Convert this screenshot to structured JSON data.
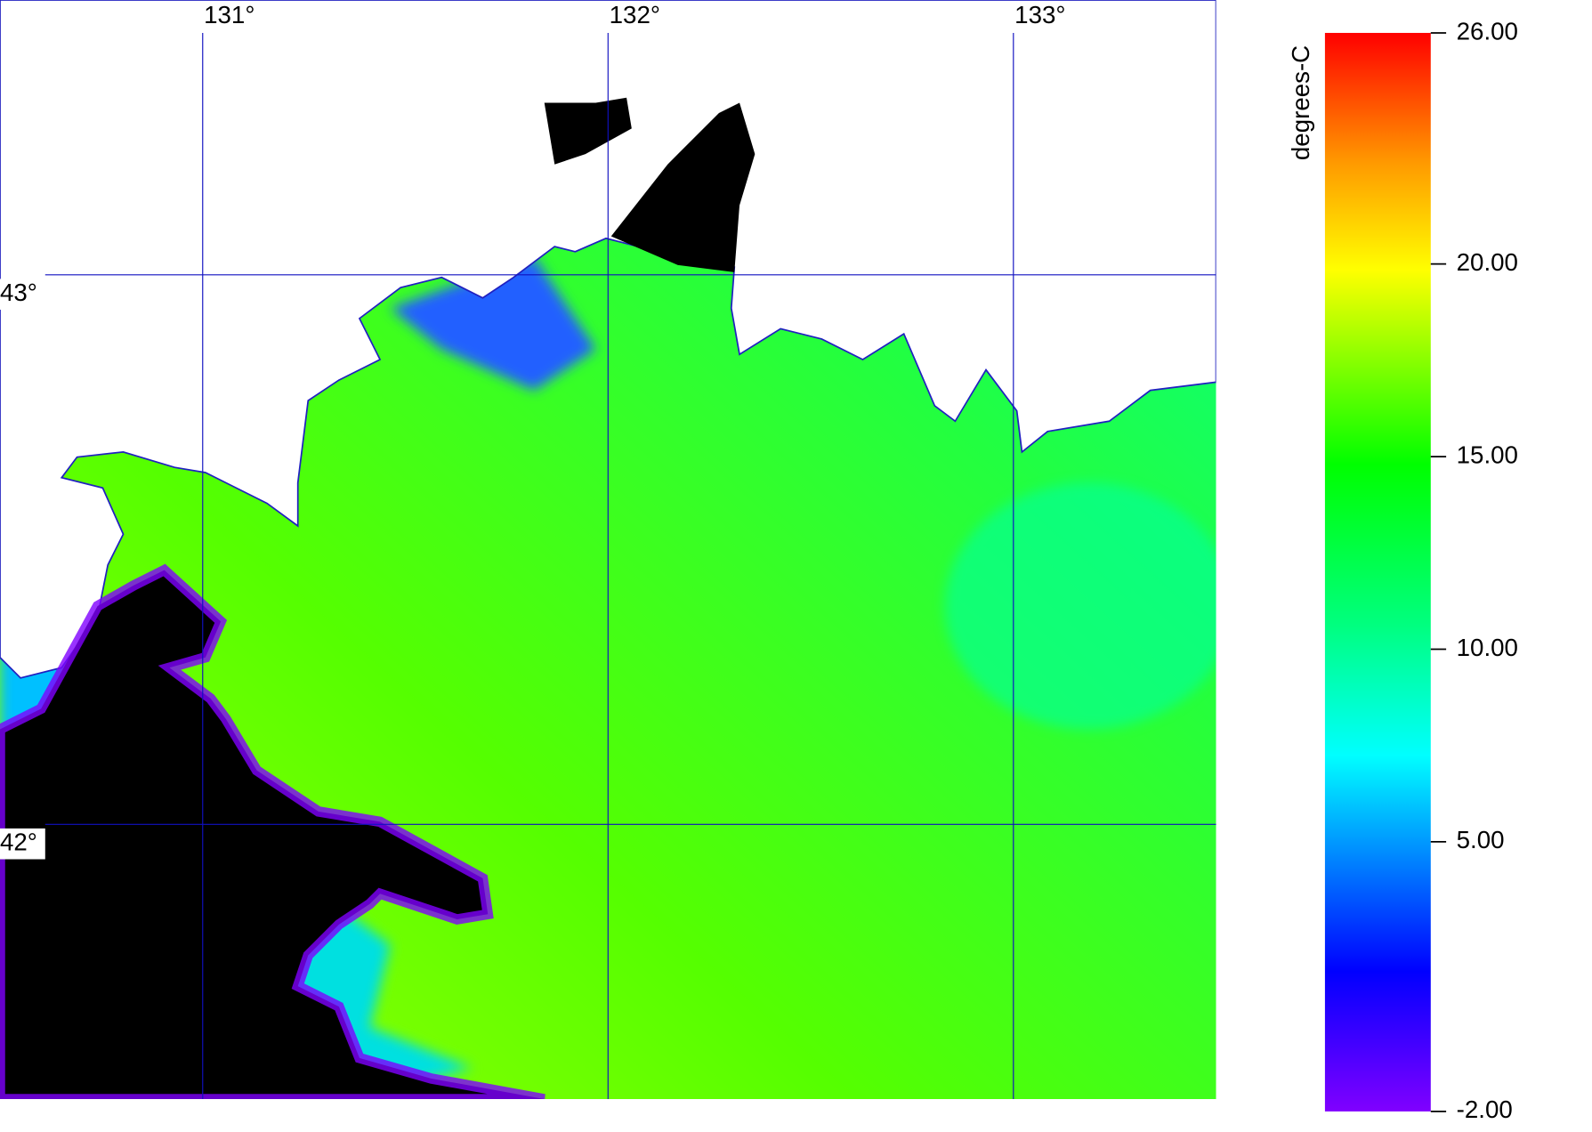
{
  "map": {
    "xlim": [
      130.5,
      133.5
    ],
    "ylim": [
      41.5,
      43.5
    ],
    "lon_ticks": [
      {
        "value": 131,
        "label": "131°"
      },
      {
        "value": 132,
        "label": "132°"
      },
      {
        "value": 133,
        "label": "133°"
      }
    ],
    "lat_ticks": [
      {
        "value": 43,
        "label": "43°"
      },
      {
        "value": 42,
        "label": "42°"
      }
    ]
  },
  "colorbar": {
    "label": "degrees-C",
    "lim": [
      -2,
      26
    ],
    "ticks": [
      {
        "value": 26,
        "label": "26.00"
      },
      {
        "value": 20,
        "label": "20.00"
      },
      {
        "value": 15,
        "label": "15.00"
      },
      {
        "value": 10,
        "label": "10.00"
      },
      {
        "value": 5,
        "label": "5.00"
      },
      {
        "value": -2,
        "label": "-2.00"
      }
    ]
  }
}
